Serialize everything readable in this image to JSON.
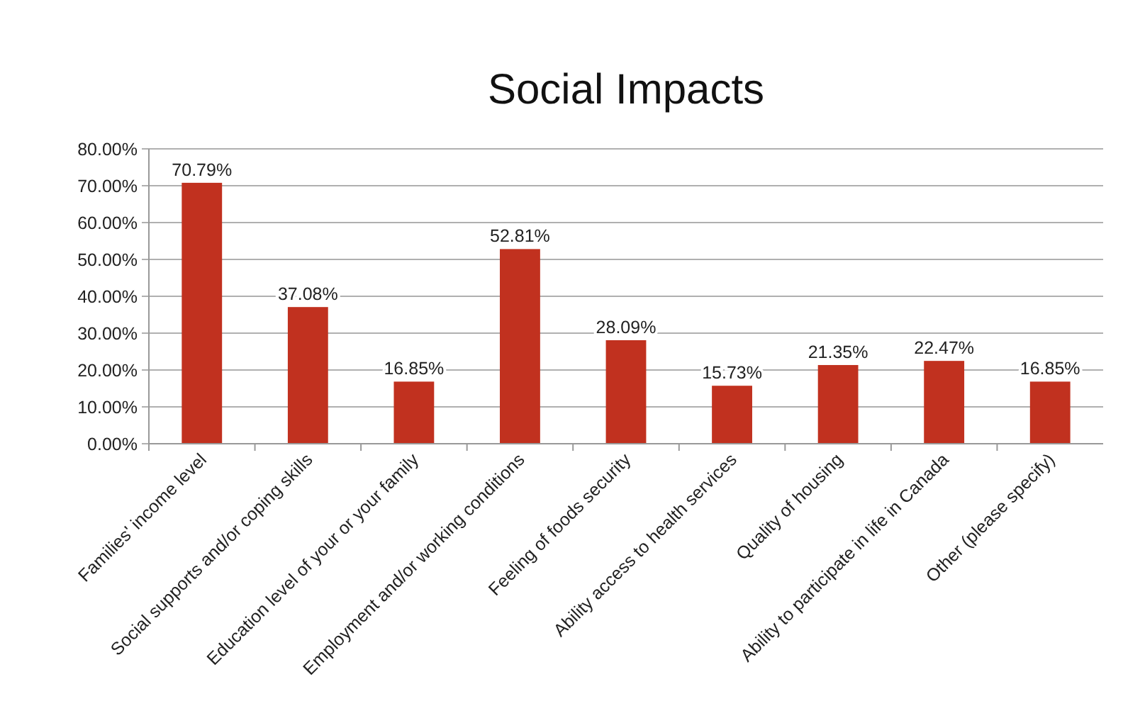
{
  "chart_data": {
    "type": "bar",
    "title": "Social Impacts",
    "categories": [
      "Families' income level",
      "Social supports and/or coping skills",
      "Education level of your or your family",
      "Employment and/or working conditions",
      "Feeling of foods security",
      "Ability access to health services",
      "Quality of housing",
      "Ability to participate in life in Canada",
      "Other (please specify)"
    ],
    "values": [
      70.79,
      37.08,
      16.85,
      52.81,
      28.09,
      15.73,
      21.35,
      22.47,
      16.85
    ],
    "value_labels": [
      "70.79%",
      "37.08%",
      "16.85%",
      "52.81%",
      "28.09%",
      "15.73%",
      "21.35%",
      "22.47%",
      "16.85%"
    ],
    "color": "#c1311f",
    "ylim": [
      0,
      80
    ],
    "yticks": [
      {
        "value": 0,
        "label": "0.00%"
      },
      {
        "value": 10,
        "label": "10.00%"
      },
      {
        "value": 20,
        "label": "20.00%"
      },
      {
        "value": 30,
        "label": "30.00%"
      },
      {
        "value": 40,
        "label": "40.00%"
      },
      {
        "value": 50,
        "label": "50.00%"
      },
      {
        "value": 60,
        "label": "60.00%"
      },
      {
        "value": 70,
        "label": "70.00%"
      },
      {
        "value": 80,
        "label": "80.00%"
      }
    ],
    "grid": "y"
  }
}
